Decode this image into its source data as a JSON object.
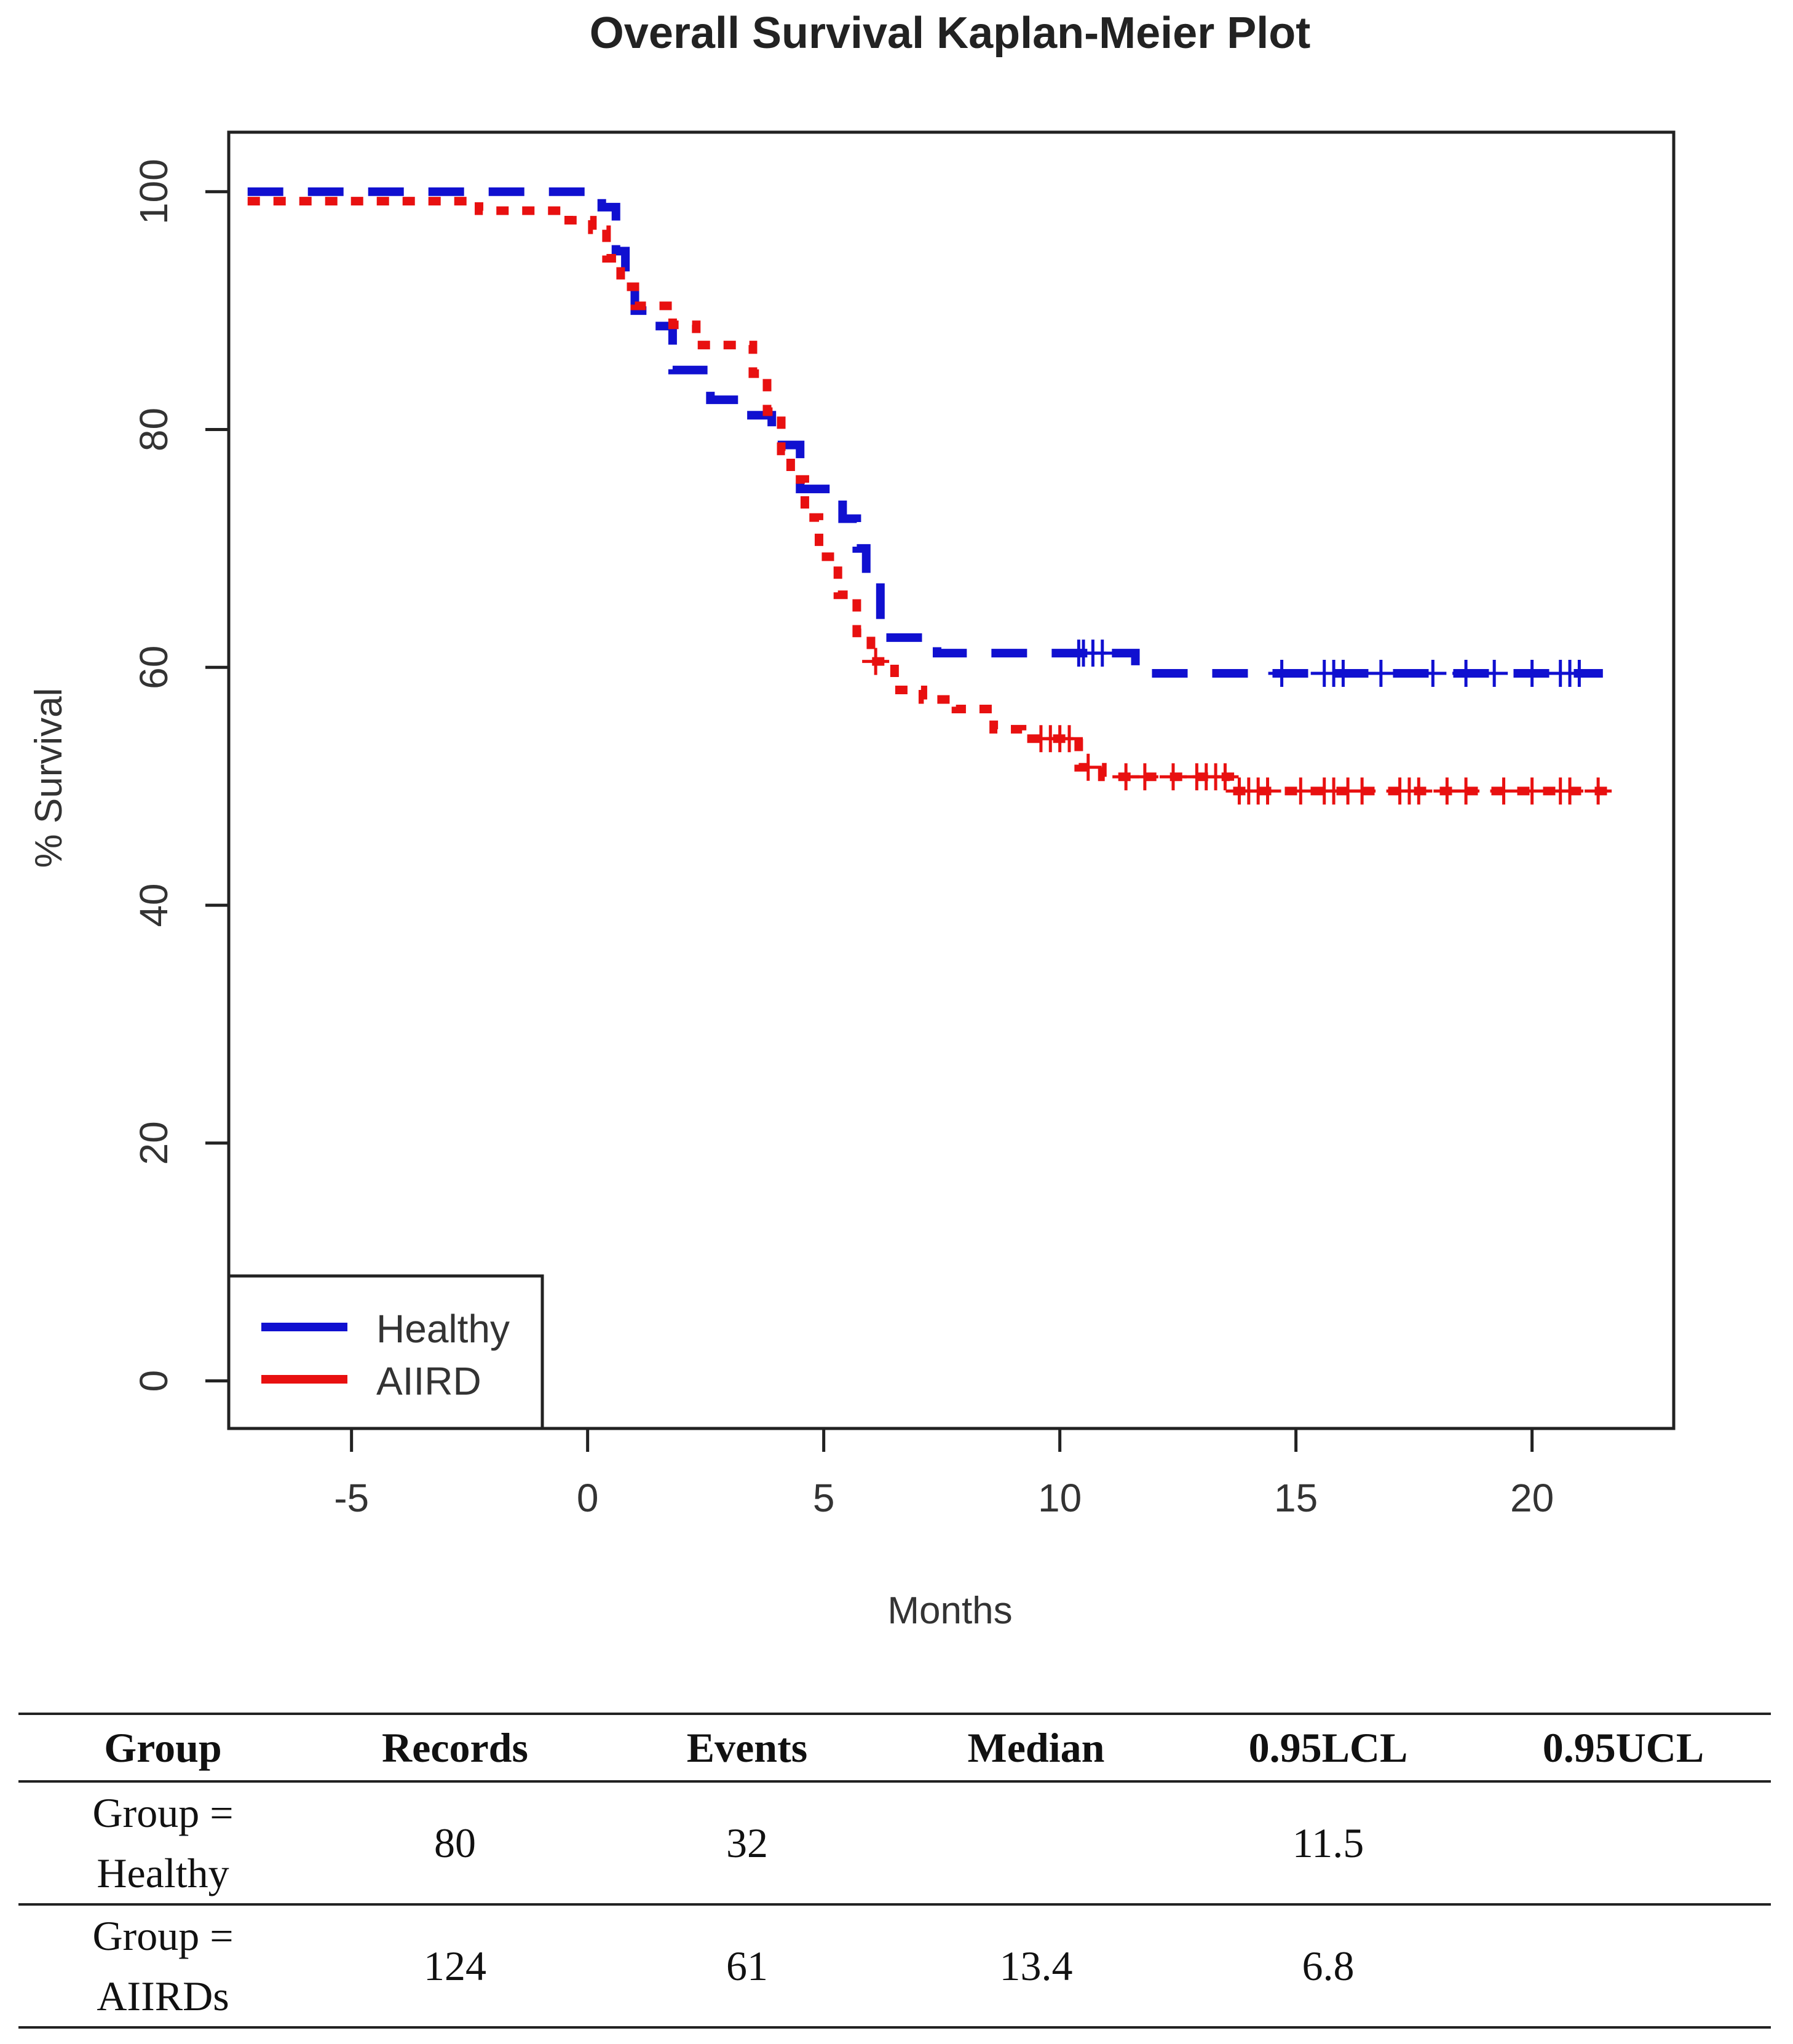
{
  "chart_data": {
    "type": "line",
    "subtype": "kaplan-meier step",
    "title": "Overall Survival Kaplan-Meier Plot",
    "xlabel": "Months",
    "ylabel": "% Survival",
    "xlim": [
      -7.6,
      23
    ],
    "ylim": [
      -4,
      105
    ],
    "xticks": [
      -5,
      0,
      5,
      10,
      15,
      20
    ],
    "yticks": [
      0,
      20,
      40,
      60,
      80,
      100
    ],
    "grid": false,
    "legend_position": "bottom-left",
    "series": [
      {
        "name": "Healthy",
        "color": "#1010d0",
        "line_style": "dashed",
        "steps": [
          [
            -7.2,
            100
          ],
          [
            0.3,
            98.7
          ],
          [
            0.6,
            95
          ],
          [
            0.8,
            92.5
          ],
          [
            1.0,
            90
          ],
          [
            1.4,
            88.7
          ],
          [
            1.8,
            85
          ],
          [
            2.6,
            82.5
          ],
          [
            3.3,
            81.2
          ],
          [
            3.9,
            78.7
          ],
          [
            4.5,
            75
          ],
          [
            5.4,
            72.5
          ],
          [
            5.7,
            70
          ],
          [
            5.9,
            67.5
          ],
          [
            6.2,
            62.5
          ],
          [
            7.4,
            61.2
          ],
          [
            11.6,
            59.5
          ],
          [
            21.5,
            59.5
          ]
        ],
        "censored": [
          10.4,
          10.5,
          10.7,
          10.9,
          14.7,
          15.6,
          15.8,
          16.0,
          16.8,
          17.9,
          18.6,
          19.2,
          20.0,
          20.6,
          20.8,
          21.0
        ]
      },
      {
        "name": "AIIRD",
        "color": "#e81010",
        "line_style": "dotted",
        "steps": [
          [
            -7.2,
            99.2
          ],
          [
            -2.3,
            98.4
          ],
          [
            -0.4,
            97.6
          ],
          [
            0.1,
            96.8
          ],
          [
            0.4,
            94.4
          ],
          [
            0.7,
            92
          ],
          [
            1.0,
            90.4
          ],
          [
            1.8,
            88.8
          ],
          [
            2.3,
            87.1
          ],
          [
            3.5,
            84.7
          ],
          [
            3.8,
            81.5
          ],
          [
            4.1,
            78.2
          ],
          [
            4.3,
            75.8
          ],
          [
            4.6,
            72.6
          ],
          [
            4.9,
            69.3
          ],
          [
            5.3,
            66.1
          ],
          [
            5.7,
            62.9
          ],
          [
            6.0,
            60.5
          ],
          [
            6.5,
            58.1
          ],
          [
            7.1,
            57.3
          ],
          [
            7.8,
            56.5
          ],
          [
            8.6,
            54.8
          ],
          [
            9.2,
            54.0
          ],
          [
            10.4,
            51.6
          ],
          [
            10.9,
            50.8
          ],
          [
            13.6,
            49.6
          ],
          [
            21.8,
            49.6
          ]
        ],
        "censored": [
          6.1,
          9.6,
          9.8,
          10.0,
          10.2,
          10.6,
          11.4,
          11.8,
          12.4,
          12.9,
          13.1,
          13.3,
          13.5,
          13.8,
          14.0,
          14.2,
          14.4,
          15.1,
          15.6,
          15.8,
          16.1,
          16.4,
          17.2,
          17.4,
          17.6,
          18.2,
          18.6,
          19.4,
          20.0,
          20.6,
          20.8,
          21.4
        ]
      }
    ]
  },
  "table": {
    "headers": [
      "Group",
      "Records",
      "Events",
      "Median",
      "0.95LCL",
      "0.95UCL"
    ],
    "rows": [
      {
        "group_line1": "Group =",
        "group_line2": "Healthy",
        "records": "80",
        "events": "32",
        "median": "",
        "lcl": "11.5",
        "ucl": ""
      },
      {
        "group_line1": "Group =",
        "group_line2": "AIIRDs",
        "records": "124",
        "events": "61",
        "median": "13.4",
        "lcl": "6.8",
        "ucl": ""
      }
    ]
  }
}
